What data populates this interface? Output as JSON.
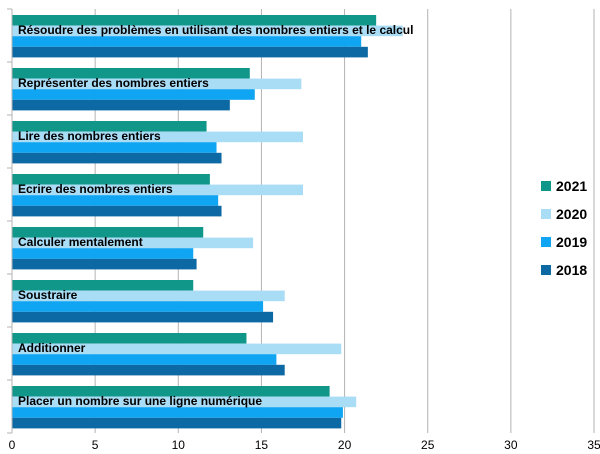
{
  "chart_data": {
    "type": "bar",
    "orientation": "horizontal",
    "categories": [
      "Résoudre des problèmes en utilisant des nombres entiers et le calcul",
      "Représenter des nombres entiers",
      "Lire des nombres entiers",
      "Ecrire des nombres entiers",
      "Calculer mentalement",
      "Soustraire",
      "Additionner",
      "Placer un nombre sur une ligne numérique"
    ],
    "series": [
      {
        "name": "2021",
        "color": "#11978a",
        "values": [
          21.9,
          14.3,
          11.7,
          11.9,
          11.5,
          10.9,
          14.1,
          19.1
        ]
      },
      {
        "name": "2020",
        "color": "#a9dcf5",
        "values": [
          23.5,
          17.4,
          17.5,
          17.5,
          14.5,
          16.4,
          19.8,
          20.7
        ]
      },
      {
        "name": "2019",
        "color": "#0fa5f3",
        "values": [
          21.0,
          14.6,
          12.3,
          12.4,
          10.9,
          15.1,
          15.9,
          19.9
        ]
      },
      {
        "name": "2018",
        "color": "#0c69a4",
        "values": [
          21.4,
          13.1,
          12.6,
          12.6,
          11.1,
          15.7,
          16.4,
          19.8
        ]
      }
    ],
    "xlim": [
      0,
      35
    ],
    "x_ticks": [
      "0",
      "5",
      "10",
      "15",
      "20",
      "25",
      "30",
      "35"
    ],
    "grid": "vertical",
    "legend_position": "right",
    "legend_order": [
      "2021",
      "2020",
      "2019",
      "2018"
    ]
  }
}
